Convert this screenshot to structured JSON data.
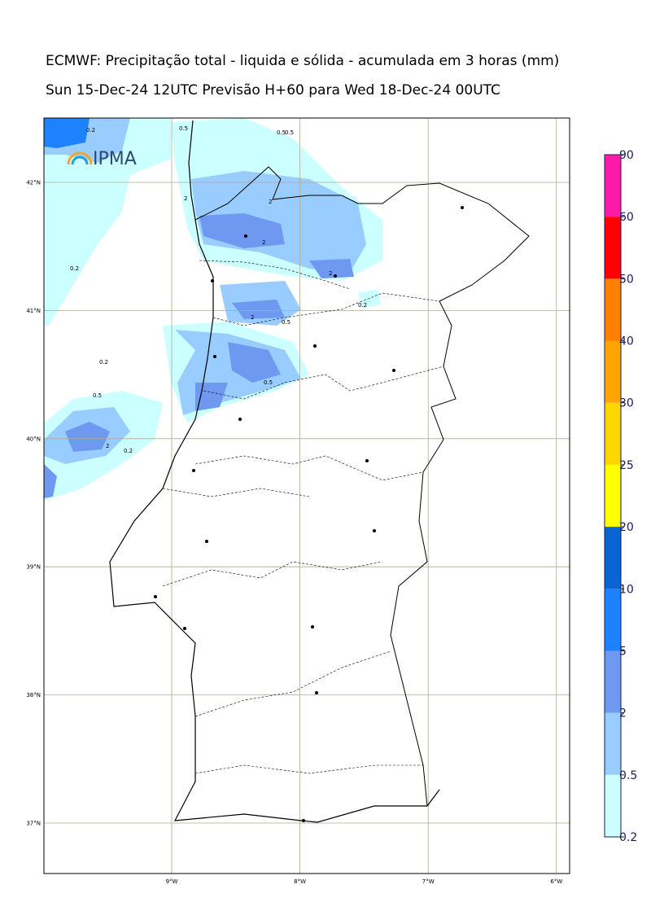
{
  "header": {
    "title": "ECMWF: Precipitação total - liquida e sólida - acumulada em 3 horas (mm)",
    "subtitle": "Sun 15-Dec-24 12UTC Previsão H+60 para Wed 18-Dec-24 00UTC"
  },
  "map": {
    "logo": "IPMA",
    "lat_labels": [
      {
        "value": 42,
        "label": "42°N"
      },
      {
        "value": 41,
        "label": "41°N"
      },
      {
        "value": 40,
        "label": "40°N"
      },
      {
        "value": 39,
        "label": "39°N"
      },
      {
        "value": 38,
        "label": "38°N"
      },
      {
        "value": 37,
        "label": "37°N"
      }
    ],
    "lon_labels": [
      {
        "value": -9,
        "label": "9°W"
      },
      {
        "value": -8,
        "label": "8°W"
      },
      {
        "value": -7,
        "label": "7°W"
      },
      {
        "value": -6,
        "label": "6°W"
      }
    ],
    "contour_labels": [
      "0.5",
      "0.2",
      "2",
      "2",
      "2",
      "0.2",
      "2",
      "0.5",
      "0.5",
      "0.2",
      "2",
      "0.5",
      "0.2",
      "0.5",
      "2",
      "0.2",
      "0.5"
    ]
  },
  "colorbar": {
    "levels": [
      0.2,
      0.5,
      2,
      5,
      10,
      20,
      25,
      30,
      40,
      50,
      60,
      90
    ],
    "colors": [
      "#ccffff",
      "#99ccff",
      "#6f98f0",
      "#1e82ff",
      "#0a64d2",
      "#ffff00",
      "#ffd700",
      "#ffa500",
      "#ff7f00",
      "#ff0000",
      "#ff1aa8"
    ]
  }
}
